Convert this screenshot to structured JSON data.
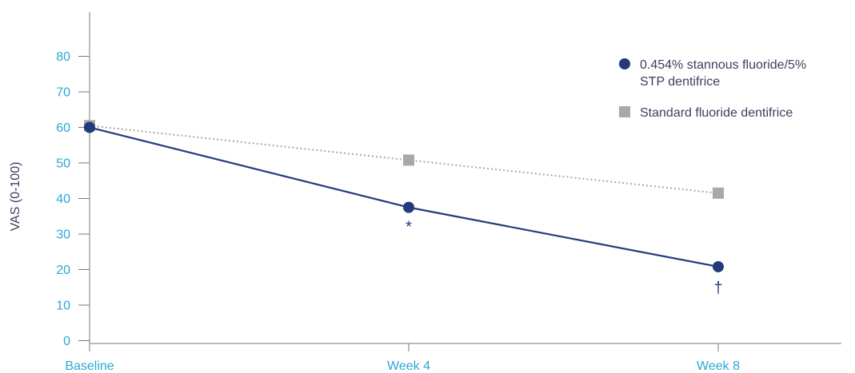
{
  "chart_data": {
    "type": "line",
    "categories": [
      "Baseline",
      "Week 4",
      "Week 8"
    ],
    "ylabel": "VAS (0-100)",
    "ylim": [
      0,
      90
    ],
    "yticks": [
      0,
      10,
      20,
      30,
      40,
      50,
      60,
      70,
      80
    ],
    "grid": false,
    "legend_position": "top-right",
    "series": [
      {
        "name_lines": [
          "0.454% stannous fluoride/5%",
          "STP dentifrice"
        ],
        "marker": "circle",
        "line_style": "solid",
        "color": "#233a7c",
        "values": [
          60,
          37.5,
          20.8
        ],
        "annotations": [
          "",
          "*",
          "†"
        ]
      },
      {
        "name_lines": [
          "Standard fluoride dentifrice"
        ],
        "marker": "square",
        "line_style": "dotted",
        "color": "#a8a8a8",
        "values": [
          60.5,
          50.8,
          41.5
        ],
        "annotations": [
          "",
          "",
          ""
        ]
      }
    ],
    "colors": {
      "tick_labels": "#29a8d8",
      "axis": "#7a7a7a",
      "text": "#3a3f5c"
    }
  }
}
